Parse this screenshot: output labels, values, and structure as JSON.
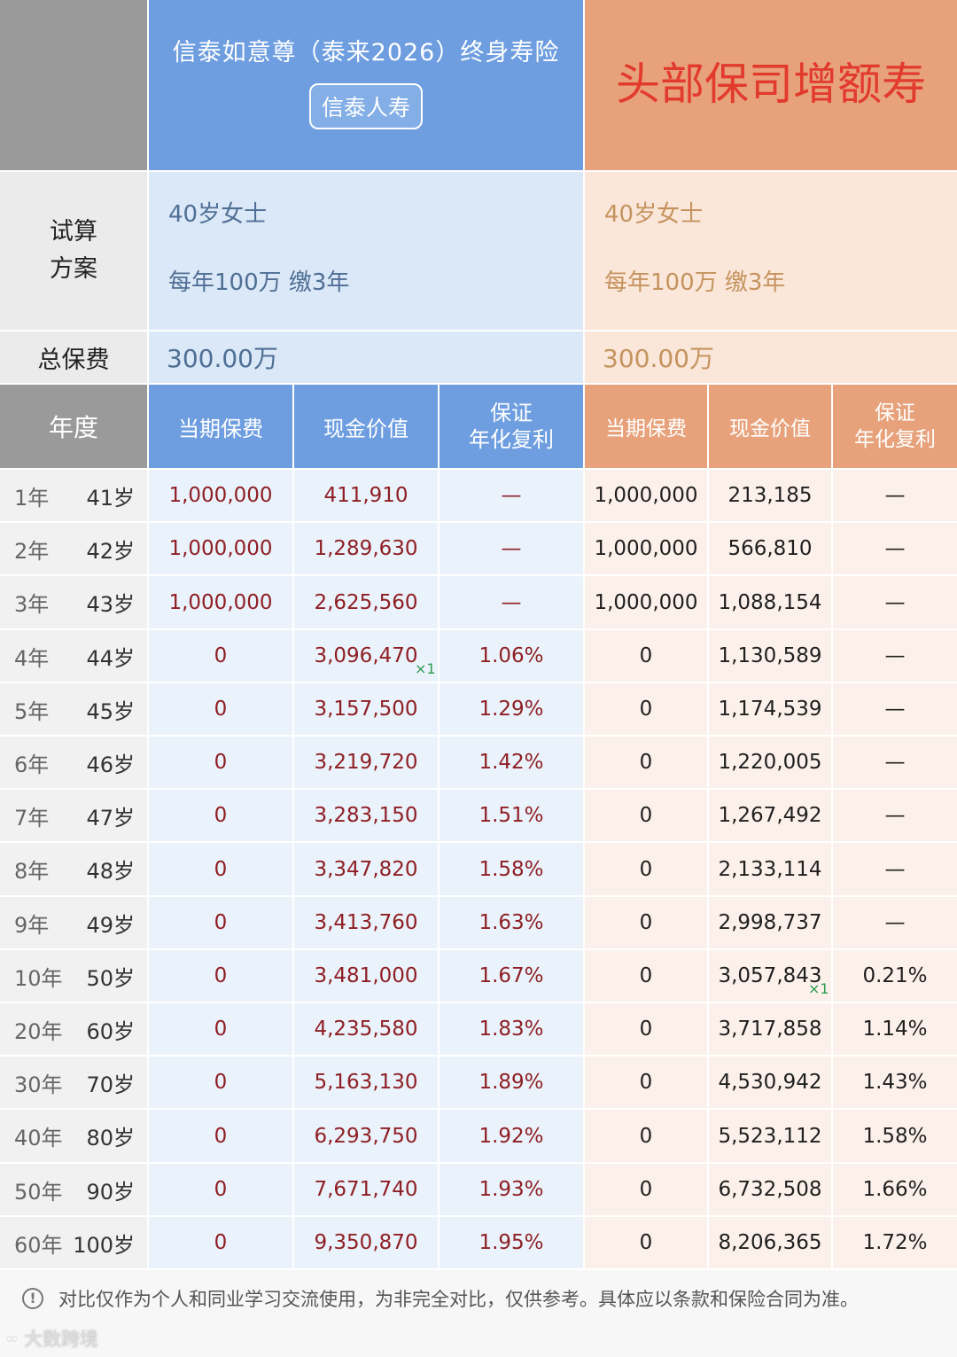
{
  "header": {
    "product_a_title": "信泰如意尊（泰来2026）终身寿险",
    "product_a_company": "信泰人寿",
    "product_b_title": "头部保司增额寿"
  },
  "plan": {
    "label": "试算\n方案",
    "a_line1": "40岁女士",
    "a_line2": "每年100万 缴3年",
    "b_line1": "40岁女士",
    "b_line2": "每年100万 缴3年"
  },
  "total": {
    "label": "总保费",
    "a_value": "300.00万",
    "b_value": "300.00万"
  },
  "columns": {
    "year": "年度",
    "premium": "当期保费",
    "cash_value": "现金价值",
    "rate": "保证\n年化复利"
  },
  "rows": [
    {
      "year": "1年",
      "age": "41岁",
      "a_premium": "1,000,000",
      "a_cash": "411,910",
      "a_rate": "—",
      "b_premium": "1,000,000",
      "b_cash": "213,185",
      "b_rate": "—"
    },
    {
      "year": "2年",
      "age": "42岁",
      "a_premium": "1,000,000",
      "a_cash": "1,289,630",
      "a_rate": "—",
      "b_premium": "1,000,000",
      "b_cash": "566,810",
      "b_rate": "—"
    },
    {
      "year": "3年",
      "age": "43岁",
      "a_premium": "1,000,000",
      "a_cash": "2,625,560",
      "a_rate": "—",
      "b_premium": "1,000,000",
      "b_cash": "1,088,154",
      "b_rate": "—"
    },
    {
      "year": "4年",
      "age": "44岁",
      "a_premium": "0",
      "a_cash": "3,096,470",
      "a_rate": "1.06%",
      "b_premium": "0",
      "b_cash": "1,130,589",
      "b_rate": "—"
    },
    {
      "year": "5年",
      "age": "45岁",
      "a_premium": "0",
      "a_cash": "3,157,500",
      "a_rate": "1.29%",
      "b_premium": "0",
      "b_cash": "1,174,539",
      "b_rate": "—"
    },
    {
      "year": "6年",
      "age": "46岁",
      "a_premium": "0",
      "a_cash": "3,219,720",
      "a_rate": "1.42%",
      "b_premium": "0",
      "b_cash": "1,220,005",
      "b_rate": "—"
    },
    {
      "year": "7年",
      "age": "47岁",
      "a_premium": "0",
      "a_cash": "3,283,150",
      "a_rate": "1.51%",
      "b_premium": "0",
      "b_cash": "1,267,492",
      "b_rate": "—"
    },
    {
      "year": "8年",
      "age": "48岁",
      "a_premium": "0",
      "a_cash": "3,347,820",
      "a_rate": "1.58%",
      "b_premium": "0",
      "b_cash": "2,133,114",
      "b_rate": "—"
    },
    {
      "year": "9年",
      "age": "49岁",
      "a_premium": "0",
      "a_cash": "3,413,760",
      "a_rate": "1.63%",
      "b_premium": "0",
      "b_cash": "2,998,737",
      "b_rate": "—"
    },
    {
      "year": "10年",
      "age": "50岁",
      "a_premium": "0",
      "a_cash": "3,481,000",
      "a_rate": "1.67%",
      "b_premium": "0",
      "b_cash": "3,057,843",
      "b_rate": "0.21%"
    },
    {
      "year": "20年",
      "age": "60岁",
      "a_premium": "0",
      "a_cash": "4,235,580",
      "a_rate": "1.83%",
      "b_premium": "0",
      "b_cash": "3,717,858",
      "b_rate": "1.14%"
    },
    {
      "year": "30年",
      "age": "70岁",
      "a_premium": "0",
      "a_cash": "5,163,130",
      "a_rate": "1.89%",
      "b_premium": "0",
      "b_cash": "4,530,942",
      "b_rate": "1.43%"
    },
    {
      "year": "40年",
      "age": "80岁",
      "a_premium": "0",
      "a_cash": "6,293,750",
      "a_rate": "1.92%",
      "b_premium": "0",
      "b_cash": "5,523,112",
      "b_rate": "1.58%"
    },
    {
      "year": "50年",
      "age": "90岁",
      "a_premium": "0",
      "a_cash": "7,671,740",
      "a_rate": "1.93%",
      "b_premium": "0",
      "b_cash": "6,732,508",
      "b_rate": "1.66%"
    },
    {
      "year": "60年",
      "age": "100岁",
      "a_premium": "0",
      "a_cash": "9,350,870",
      "a_rate": "1.95%",
      "b_premium": "0",
      "b_cash": "8,206,365",
      "b_rate": "1.72%"
    }
  ],
  "marks": {
    "a_row4_mark": "×1",
    "b_row10_mark": "×1"
  },
  "footer": {
    "disclaimer": "对比仅作为个人和同业学习交流使用，为非完全对比，仅供参考。具体应以条款和保险合同为准。",
    "watermark": "大数跨境"
  },
  "colors": {
    "blue_header": "#6e9ee0",
    "orange_header": "#e7a27b",
    "gray_header": "#9a9a9a",
    "red_text": "#8e1f24",
    "title_red": "#e23a2c"
  }
}
